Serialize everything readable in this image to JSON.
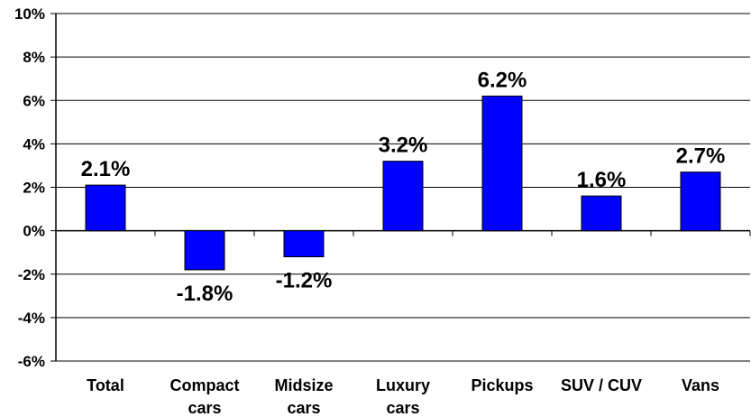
{
  "chart_data": {
    "type": "bar",
    "categories": [
      "Total",
      "Compact cars",
      "Midsize cars",
      "Luxury cars",
      "Pickups",
      "SUV / CUV",
      "Vans"
    ],
    "category_lines": [
      [
        "Total"
      ],
      [
        "Compact",
        "cars"
      ],
      [
        "Midsize",
        "cars"
      ],
      [
        "Luxury",
        "cars"
      ],
      [
        "Pickups"
      ],
      [
        "SUV / CUV"
      ],
      [
        "Vans"
      ]
    ],
    "values": [
      2.1,
      -1.8,
      -1.2,
      3.2,
      6.2,
      1.6,
      2.7
    ],
    "data_labels": [
      "2.1%",
      "-1.8%",
      "-1.2%",
      "3.2%",
      "6.2%",
      "1.6%",
      "2.7%"
    ],
    "ylim": [
      -6,
      10
    ],
    "ytick_values": [
      10,
      8,
      6,
      4,
      2,
      0,
      -2,
      -4,
      -6
    ],
    "ytick_labels": [
      "10%",
      "8%",
      "6%",
      "4%",
      "2%",
      "0%",
      "-2%",
      "-4%",
      "-6%"
    ],
    "grid": true,
    "legend": "none",
    "title": "",
    "xlabel": "",
    "ylabel": "",
    "colors": {
      "bar": "#0000ff",
      "bar_edge": "#000000",
      "grid": "#000000"
    }
  }
}
